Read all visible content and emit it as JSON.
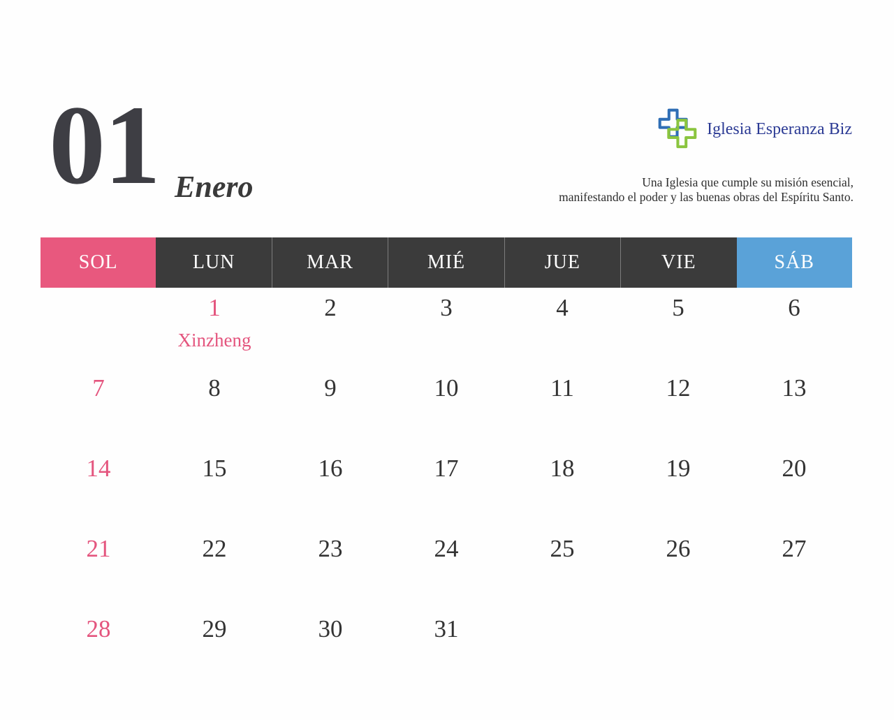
{
  "header": {
    "month_number": "01",
    "month_name": "Enero",
    "brand": {
      "name": "Iglesia Esperanza Biz",
      "icon": "interlocking-crosses-logo",
      "name_color": "#2b3a94",
      "icon_blue": "#2f6eb5",
      "icon_green": "#8bc53f"
    },
    "tagline_line1": "Una Iglesia que cumple su misión esencial,",
    "tagline_line2": "manifestando el poder y las buenas obras del Espíritu Santo."
  },
  "calendar": {
    "colors": {
      "sunday_header_bg": "#e8587e",
      "weekday_header_bg": "#3b3b3b",
      "saturday_header_bg": "#5aa2d8",
      "header_text": "#ffffff",
      "date_default": "#333333",
      "date_highlight": "#e4557e"
    },
    "day_headers": [
      {
        "label": "SOL",
        "type": "sunday"
      },
      {
        "label": "LUN",
        "type": "weekday"
      },
      {
        "label": "MAR",
        "type": "weekday"
      },
      {
        "label": "MIÉ",
        "type": "weekday"
      },
      {
        "label": "JUE",
        "type": "weekday"
      },
      {
        "label": "VIE",
        "type": "weekday"
      },
      {
        "label": "SÁB",
        "type": "saturday"
      }
    ],
    "weeks": [
      [
        {
          "date": ""
        },
        {
          "date": "1",
          "highlight": true,
          "holiday": "Xinzheng"
        },
        {
          "date": "2"
        },
        {
          "date": "3"
        },
        {
          "date": "4"
        },
        {
          "date": "5"
        },
        {
          "date": "6"
        }
      ],
      [
        {
          "date": "7",
          "highlight": true
        },
        {
          "date": "8"
        },
        {
          "date": "9"
        },
        {
          "date": "10"
        },
        {
          "date": "11"
        },
        {
          "date": "12"
        },
        {
          "date": "13"
        }
      ],
      [
        {
          "date": "14",
          "highlight": true
        },
        {
          "date": "15"
        },
        {
          "date": "16"
        },
        {
          "date": "17"
        },
        {
          "date": "18"
        },
        {
          "date": "19"
        },
        {
          "date": "20"
        }
      ],
      [
        {
          "date": "21",
          "highlight": true
        },
        {
          "date": "22"
        },
        {
          "date": "23"
        },
        {
          "date": "24"
        },
        {
          "date": "25"
        },
        {
          "date": "26"
        },
        {
          "date": "27"
        }
      ],
      [
        {
          "date": "28",
          "highlight": true
        },
        {
          "date": "29"
        },
        {
          "date": "30"
        },
        {
          "date": "31"
        },
        {
          "date": ""
        },
        {
          "date": ""
        },
        {
          "date": ""
        }
      ]
    ]
  }
}
